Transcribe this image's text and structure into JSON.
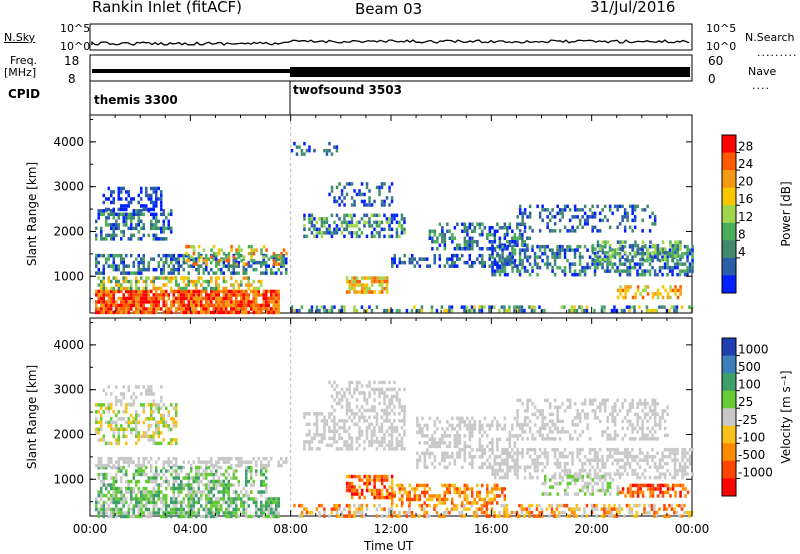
{
  "header": {
    "title": "Rankin Inlet (fitACF)",
    "beam": "Beam 03",
    "date": "31/Jul/2016"
  },
  "side_labels": {
    "nsky": "N.Sky",
    "freq": "Freq.",
    "freq_unit": "[MHz]",
    "cpid": "CPID",
    "nsearch": "N.Search",
    "nave": "Nave"
  },
  "top_axes": {
    "nsky_ticks": [
      "10^5",
      "10^0"
    ],
    "nsearch_ticks": [
      "10^5",
      "10^0"
    ],
    "freq_ticks": [
      "18",
      "8"
    ],
    "nave_ticks": [
      "60",
      "0"
    ]
  },
  "cpid_segments": [
    {
      "label": "themis 3300",
      "start_hour": 0
    },
    {
      "label": "twofsound 3503",
      "start_hour": 8
    }
  ],
  "chart_data": [
    {
      "type": "heatmap",
      "title": "",
      "quantity": "Power",
      "xlabel": "Time UT",
      "ylabel": "Slant Range [km]",
      "x_ticks": [
        "00:00",
        "04:00",
        "08:00",
        "12:00",
        "16:00",
        "20:00",
        "00:00"
      ],
      "y_ticks": [
        1000,
        2000,
        3000,
        4000
      ],
      "xlim_hours": [
        0,
        24
      ],
      "ylim_km": [
        180,
        4600
      ],
      "colorbar_label": "Power [dB]",
      "colorbar_ticks": [
        "28",
        "24",
        "20",
        "16",
        "12",
        "8",
        "4"
      ],
      "colorbar_colors": [
        "#ff0000",
        "#ff5a00",
        "#f29a14",
        "#f7c700",
        "#9fd64b",
        "#4cae5b",
        "#3f8a6b",
        "#2b5ea8",
        "#0020ff"
      ]
    },
    {
      "type": "heatmap",
      "title": "",
      "quantity": "Velocity",
      "xlabel": "Time UT",
      "ylabel": "Slant Range [km]",
      "x_ticks": [
        "00:00",
        "04:00",
        "08:00",
        "12:00",
        "16:00",
        "20:00",
        "00:00"
      ],
      "y_ticks": [
        1000,
        2000,
        3000,
        4000
      ],
      "xlim_hours": [
        0,
        24
      ],
      "ylim_km": [
        180,
        4600
      ],
      "colorbar_label": "Velocity [m s⁻¹]",
      "colorbar_ticks": [
        "1000",
        "500",
        "100",
        "25",
        "-25",
        "-100",
        "-500",
        "-1000"
      ],
      "colorbar_colors": [
        "#1f3fb0",
        "#3d7fb8",
        "#3f9f6a",
        "#66cc33",
        "#c8c8c8",
        "#f7c21a",
        "#ff8c00",
        "#ff4500",
        "#ff0000"
      ]
    }
  ],
  "xlabel": "Time UT"
}
